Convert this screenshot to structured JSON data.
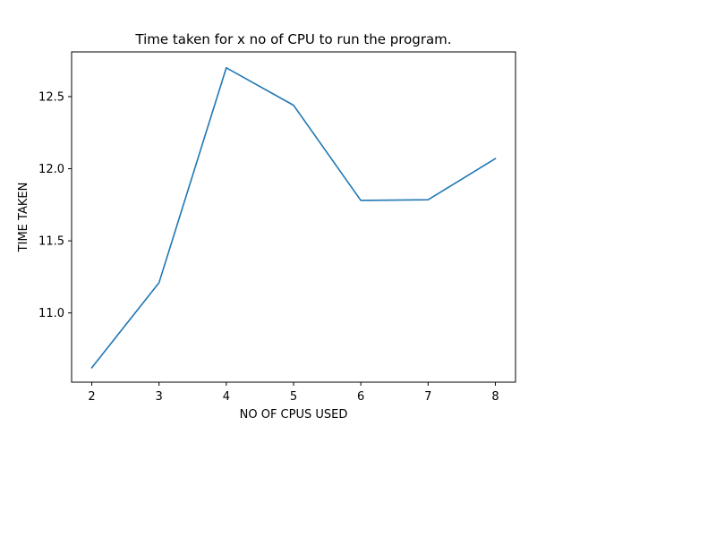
{
  "chart_data": {
    "type": "line",
    "title": "Time taken for x no of CPU to run the program.",
    "xlabel": "NO OF CPUS USED",
    "ylabel": "TIME TAKEN",
    "x": [
      2,
      3,
      4,
      5,
      6,
      7,
      8
    ],
    "series": [
      {
        "values": [
          10.62,
          11.21,
          12.7,
          12.44,
          11.78,
          11.785,
          12.07
        ],
        "color": "#1f77b4"
      }
    ],
    "xlim": [
      1.7,
      8.3
    ],
    "ylim": [
      10.52,
      12.81
    ],
    "xticks": [
      2,
      3,
      4,
      5,
      6,
      7,
      8
    ],
    "yticks": [
      11.0,
      11.5,
      12.0,
      12.5
    ],
    "ytick_labels": [
      "11.0",
      "11.5",
      "12.0",
      "12.5"
    ],
    "grid": false,
    "legend": "none"
  }
}
